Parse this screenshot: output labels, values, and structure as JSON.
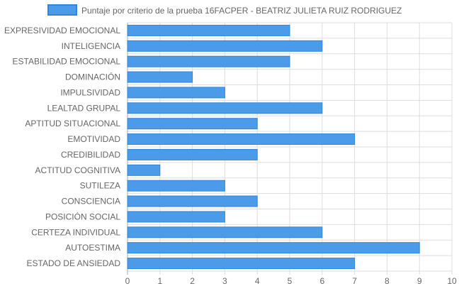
{
  "chart_data": {
    "type": "bar",
    "orientation": "horizontal",
    "legend_position": "top",
    "grid": true,
    "xlim": [
      0,
      10
    ],
    "x_ticks": [
      "0",
      "1",
      "2",
      "3",
      "4",
      "5",
      "6",
      "7",
      "8",
      "9",
      "10"
    ],
    "categories": [
      "EXPRESIVIDAD EMOCIONAL",
      "INTELIGENCIA",
      "ESTABILIDAD EMOCIONAL",
      "DOMINACIÓN",
      "IMPULSIVIDAD",
      "LEALTAD GRUPAL",
      "APTITUD SITUACIONAL",
      "EMOTIVIDAD",
      "CREDIBILIDAD",
      "ACTITUD COGNITIVA",
      "SUTILEZA",
      "CONSCIENCIA",
      "POSICIÓN SOCIAL",
      "CERTEZA INDIVIDUAL",
      "AUTOESTIMA",
      "ESTADO DE ANSIEDAD"
    ],
    "series": [
      {
        "name": "Puntaje por criterio de la prueba 16FACPER - BEATRIZ JULIETA RUIZ RODRIGUEZ",
        "values": [
          5,
          6,
          5,
          2,
          3,
          6,
          4,
          7,
          4,
          1,
          3,
          4,
          3,
          6,
          9,
          7
        ],
        "color": "#4c9be8",
        "border_color": "#2f86dd"
      }
    ],
    "grid_color": "#dddddd",
    "axis_color": "#aaaaaa"
  }
}
